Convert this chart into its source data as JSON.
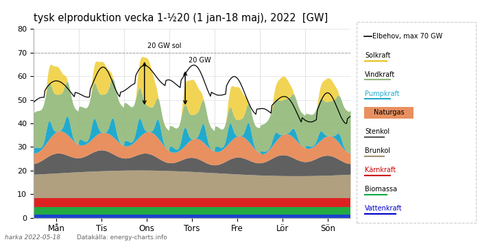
{
  "title": "tysk elproduktion vecka 1-½20 (1 jan-18 maj), 2022  [GW]",
  "xlabel_ticks": [
    "Mån",
    "Tis",
    "Ons",
    "Tors",
    "Fre",
    "Lör",
    "Sön"
  ],
  "ylim": [
    0,
    80
  ],
  "yticks": [
    0,
    10,
    20,
    30,
    40,
    50,
    60,
    70,
    80
  ],
  "footer_left": "harka 2022-05-18",
  "footer_right": "Datakälla: energy-charts.info",
  "legend_items": [
    {
      "label": "Elbehov, max 70 GW",
      "color": "#000000",
      "underline": false,
      "bg": null,
      "ul_color": null,
      "line_color": "#000000"
    },
    {
      "label": "Solkraft",
      "color": "#000000",
      "underline": true,
      "bg": null,
      "ul_color": "#e8c020"
    },
    {
      "label": "Vindkraft",
      "color": "#000000",
      "underline": true,
      "bg": null,
      "ul_color": "#90b878"
    },
    {
      "label": "Pumpkraft",
      "color": "#22aacc",
      "underline": true,
      "bg": null,
      "ul_color": "#22aacc"
    },
    {
      "label": "Naturgas",
      "color": "#000000",
      "underline": false,
      "bg": "#e89060"
    },
    {
      "label": "Stenkol",
      "color": "#000000",
      "underline": true,
      "bg": null,
      "ul_color": "#555555"
    },
    {
      "label": "Brunkol",
      "color": "#000000",
      "underline": true,
      "bg": null,
      "ul_color": "#a09070"
    },
    {
      "label": "Kärnkraft",
      "color": "#cc0000",
      "underline": true,
      "bg": null,
      "ul_color": "#cc0000"
    },
    {
      "label": "Biomassa",
      "color": "#000000",
      "underline": true,
      "bg": null,
      "ul_color": "#00aa44"
    },
    {
      "label": "Vattenkraft",
      "color": "#0000cc",
      "underline": true,
      "bg": null,
      "ul_color": "#0000cc"
    }
  ],
  "colors": {
    "Vattenkraft": "#1a44cc",
    "Biomassa": "#22aa44",
    "Kaernkraft": "#dd2222",
    "Brunkol": "#b0a080",
    "Stenkol": "#606060",
    "Naturgas": "#e89060",
    "Pumpkraft": "#22aacc",
    "Vindkraft": "#90b878",
    "Solkraft": "#f0d040",
    "Elbehov": "#222222"
  },
  "annotation1": "20 GW sol",
  "annotation2": "20 GW",
  "n_points": 336
}
